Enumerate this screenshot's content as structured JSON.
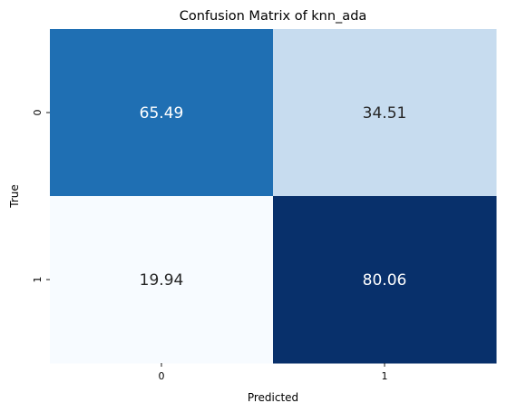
{
  "chart_data": {
    "type": "heatmap",
    "title": "Confusion Matrix of knn_ada",
    "xlabel": "Predicted",
    "ylabel": "True",
    "x_categories": [
      "0",
      "1"
    ],
    "y_categories": [
      "0",
      "1"
    ],
    "values": [
      [
        65.49,
        34.51
      ],
      [
        19.94,
        80.06
      ]
    ],
    "value_labels": [
      [
        "65.49",
        "34.51"
      ],
      [
        "19.94",
        "80.06"
      ]
    ],
    "colormap": "Blues",
    "colorbar": false,
    "grid": false,
    "color_min": "#f7fbff",
    "color_max": "#08306b"
  }
}
